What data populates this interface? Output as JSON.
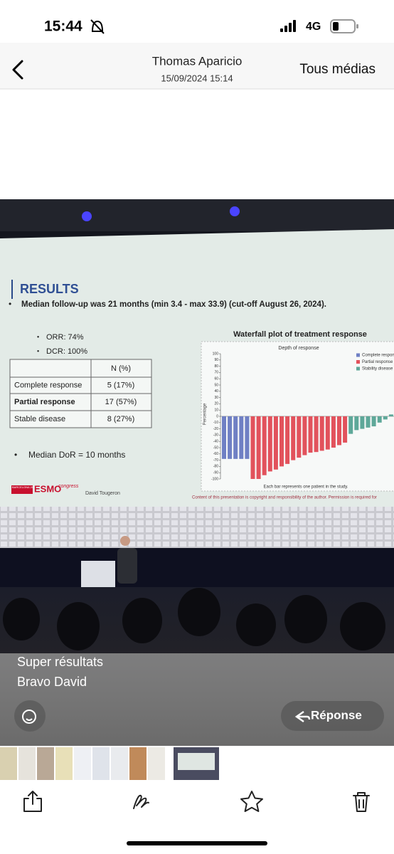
{
  "status_bar": {
    "time": "15:44",
    "network": "4G"
  },
  "header": {
    "title": "Thomas Aparicio",
    "subtitle": "15/09/2024 15:14",
    "action": "Tous médias"
  },
  "slide": {
    "heading": "RESULTS",
    "bullet": "Median follow-up was 21 months (min 3.4 - max 33.9) (cut-off August 26, 2024).",
    "metrics": [
      "ORR: 74%",
      "DCR: 100%"
    ],
    "table": {
      "column": "N (%)",
      "rows": [
        [
          "Complete response",
          "5 (17%)"
        ],
        [
          "Partial response",
          "17 (57%)"
        ],
        [
          "Stable disease",
          "8 (27%)"
        ]
      ]
    },
    "dor": "Median DoR = 10 months",
    "logo": {
      "city": "BARCELONA 2024",
      "brand": "ESMO",
      "suffix": "congress"
    },
    "author": "David Tougeron",
    "copyright": "Content of this presentation is copyright and responsibility of the author. Permission is required for"
  },
  "chart_data": {
    "type": "bar",
    "title": "Waterfall plot of treatment response",
    "subtitle": "Depth of response",
    "y_label": "Percentage",
    "x_label": "Each bar represents one patient in the study.",
    "ylim": [
      -100,
      100
    ],
    "yticks": [
      100,
      90,
      80,
      70,
      60,
      50,
      40,
      30,
      20,
      10,
      0,
      -10,
      -20,
      -30,
      -40,
      -50,
      -60,
      -70,
      -80,
      -90,
      -100
    ],
    "series": [
      {
        "name": "Complete response",
        "color": "#6f80c4",
        "values": [
          -68,
          -68,
          -68,
          -68,
          -68
        ]
      },
      {
        "name": "Partial response",
        "color": "#e2525c",
        "values": [
          -100,
          -100,
          -94,
          -88,
          -85,
          -80,
          -76,
          -70,
          -66,
          -62,
          -58,
          -57,
          -55,
          -53,
          -50,
          -46,
          -42
        ]
      },
      {
        "name": "Stability disease",
        "color": "#5ea899",
        "values": [
          -28,
          -22,
          -20,
          -18,
          -16,
          -10,
          -5,
          3
        ]
      }
    ]
  },
  "caption": [
    "Super résultats",
    "Bravo David"
  ],
  "reply": "Réponse"
}
